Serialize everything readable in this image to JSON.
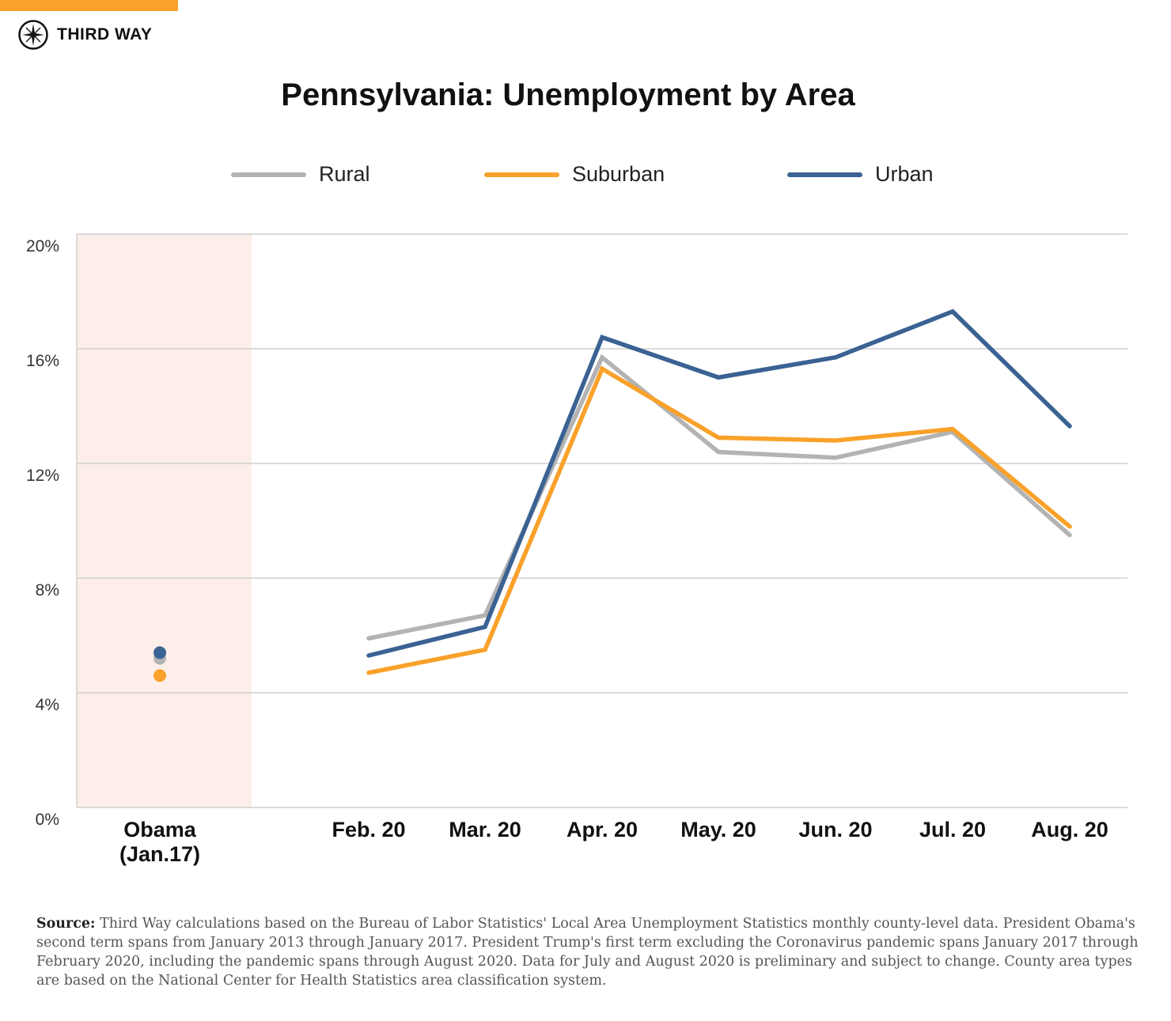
{
  "brand": {
    "name": "THIRD WAY",
    "accent": "#f9a12a",
    "icon": "compass-star-icon"
  },
  "chart_data": {
    "type": "line",
    "title": "Pennsylvania: Unemployment by Area",
    "categories": [
      "Obama\n(Jan.17)",
      "Feb. 20",
      "Mar. 20",
      "Apr. 20",
      "May. 20",
      "Jun. 20",
      "Jul. 20",
      "Aug. 20"
    ],
    "category_lines": [
      [
        "Obama",
        "(Jan.17)"
      ],
      [
        "Feb. 20"
      ],
      [
        "Mar. 20"
      ],
      [
        "Apr. 20"
      ],
      [
        "May. 20"
      ],
      [
        "Jun. 20"
      ],
      [
        "Jul. 20"
      ],
      [
        "Aug. 20"
      ]
    ],
    "note": "",
    "ylim": [
      0,
      20
    ],
    "yticks": [
      0,
      4,
      8,
      12,
      16,
      20
    ],
    "ytick_labels": [
      "0%",
      "4%",
      "8%",
      "12%",
      "16%",
      "20%"
    ],
    "grid": true,
    "legend_position": "top",
    "highlight_region": {
      "category": "Obama\n(Jan.17)",
      "color": "#fdeee9"
    },
    "series": [
      {
        "name": "Rural",
        "color": "#b3b3b3",
        "values": [
          5.2,
          5.9,
          6.7,
          15.7,
          12.4,
          12.2,
          13.1,
          9.5
        ]
      },
      {
        "name": "Suburban",
        "color": "#f9a12a",
        "values": [
          4.6,
          4.7,
          5.5,
          15.3,
          12.9,
          12.8,
          13.2,
          9.8
        ]
      },
      {
        "name": "Urban",
        "color": "#3a6293",
        "values": [
          5.4,
          5.3,
          6.3,
          16.4,
          15.0,
          15.7,
          17.3,
          13.3
        ]
      }
    ]
  },
  "footer": {
    "label": "Source:",
    "text": " Third Way calculations based on the Bureau of Labor Statistics' Local Area Unemployment Statistics monthly county-level data. President Obama's second term spans from January 2013 through January 2017. President Trump's first term excluding the Coronavirus pandemic spans January 2017 through February 2020, including the pandemic spans through August 2020. Data for July and August 2020 is preliminary and subject to change. County area types are based on the National Center for Health Statistics area classification system."
  }
}
